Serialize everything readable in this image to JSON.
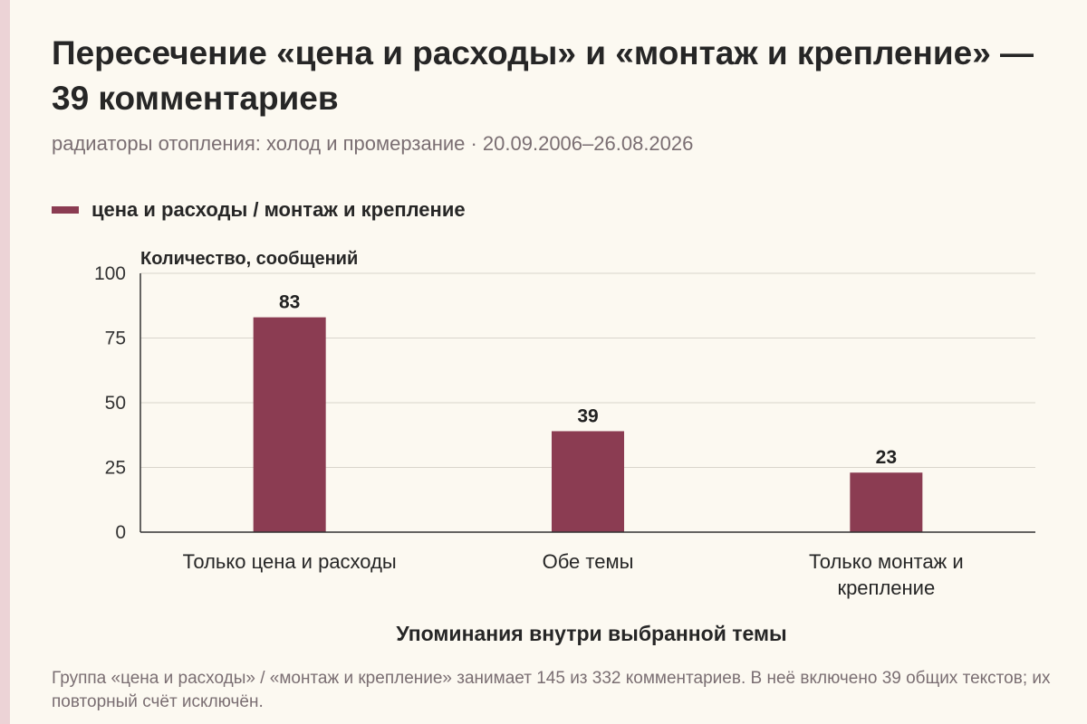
{
  "title": "Пересечение «цена и расходы» и «монтаж и крепление» — 39 комментариев",
  "subtitle": "радиаторы отопления: холод и промерзание · 20.09.2006–26.08.2026",
  "legend_label": "цена и расходы / монтаж и крепление",
  "footnote": "Группа «цена и расходы» / «монтаж и крепление» занимает 145 из 332 комментариев. В неё включено 39 общих текстов; их повторный счёт исключён.",
  "colors": {
    "bar": "#8b3c52",
    "grid": "#d9d5cc",
    "axis": "#333333",
    "accent_strip": "#ecd3d6"
  },
  "chart_data": {
    "type": "bar",
    "categories": [
      "Только цена и расходы",
      "Обе темы",
      "Только монтаж и крепление"
    ],
    "values": [
      83,
      39,
      23
    ],
    "ylabel": "Количество, сообщений",
    "xlabel": "Упоминания внутри выбранной темы",
    "ylim": [
      0,
      100
    ],
    "yticks": [
      0,
      25,
      50,
      75,
      100
    ],
    "grid": true,
    "legend_position": "top-left"
  }
}
